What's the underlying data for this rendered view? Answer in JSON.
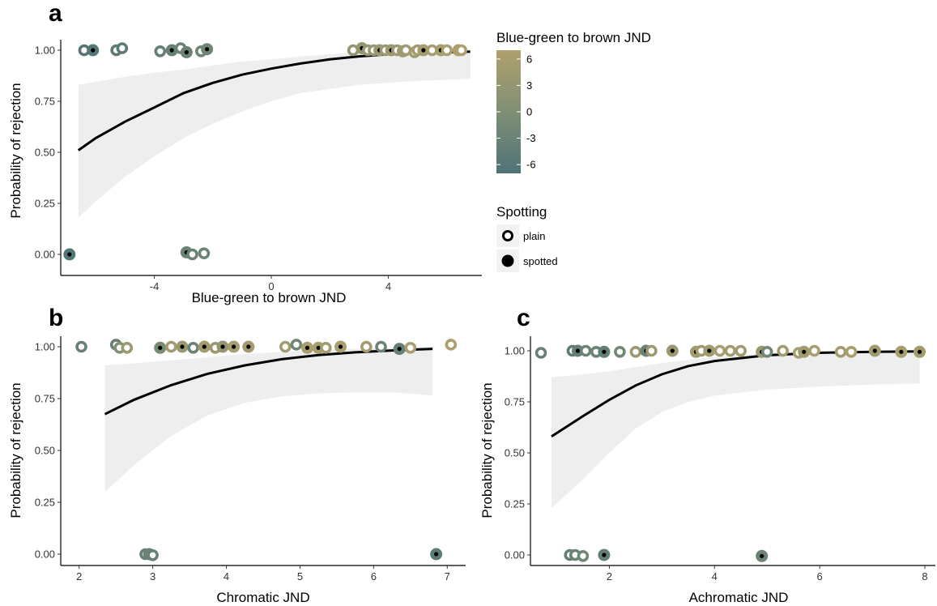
{
  "colors": {
    "low": "#4f7376",
    "mid": "#7f8f75",
    "high": "#b0a06d",
    "ribbon": "#ebebeb",
    "curve": "#000000"
  },
  "legend": {
    "color_title": "Blue-green to brown JND",
    "color_ticks": [
      "6",
      "3",
      "0",
      "-3",
      "-6"
    ],
    "shape_title": "Spotting",
    "plain_label": "plain",
    "spotted_label": "spotted"
  },
  "chart_data": [
    {
      "panel": "a",
      "type": "scatter",
      "xlabel": "Blue-green to brown JND",
      "ylabel": "Probability of rejection",
      "xlim": [
        -7.2,
        7.2
      ],
      "ylim": [
        0,
        1
      ],
      "xticks": [
        -4,
        0,
        4
      ],
      "xtick_labels": [
        "-4",
        "0",
        "4"
      ],
      "yticks": [
        0,
        0.25,
        0.5,
        0.75,
        1
      ],
      "ytick_labels": [
        "0.00",
        "0.25",
        "0.50",
        "0.75",
        "1.00"
      ],
      "grid": false,
      "fit": {
        "x": [
          -6.6,
          -6,
          -5,
          -4,
          -3,
          -2,
          -1,
          0,
          1,
          2,
          3,
          4,
          5,
          6,
          6.8
        ],
        "y": [
          0.51,
          0.57,
          0.65,
          0.72,
          0.79,
          0.84,
          0.88,
          0.91,
          0.935,
          0.955,
          0.97,
          0.98,
          0.986,
          0.99,
          0.993
        ],
        "upper": [
          0.83,
          0.845,
          0.87,
          0.89,
          0.905,
          0.925,
          0.945,
          0.955,
          0.97,
          0.98,
          0.99,
          0.995,
          0.998,
          0.999,
          1.0
        ],
        "lower": [
          0.18,
          0.26,
          0.38,
          0.48,
          0.57,
          0.64,
          0.7,
          0.75,
          0.79,
          0.81,
          0.83,
          0.84,
          0.85,
          0.855,
          0.86
        ]
      },
      "points": [
        {
          "x": -6.4,
          "y": 1.0,
          "spotted": false,
          "c": -6.4
        },
        {
          "x": -6.1,
          "y": 1.0,
          "spotted": true,
          "c": -6.1
        },
        {
          "x": -5.3,
          "y": 1.0,
          "spotted": false,
          "c": -5.3
        },
        {
          "x": -5.1,
          "y": 1.01,
          "spotted": false,
          "c": -5.1
        },
        {
          "x": -3.8,
          "y": 0.995,
          "spotted": false,
          "c": -3.8
        },
        {
          "x": -3.4,
          "y": 1.0,
          "spotted": true,
          "c": -3.4
        },
        {
          "x": -3.1,
          "y": 1.01,
          "spotted": false,
          "c": -3.1
        },
        {
          "x": -2.9,
          "y": 0.99,
          "spotted": true,
          "c": -2.9
        },
        {
          "x": -2.4,
          "y": 0.995,
          "spotted": false,
          "c": -2.4
        },
        {
          "x": -2.2,
          "y": 1.005,
          "spotted": true,
          "c": -2.2
        },
        {
          "x": 2.8,
          "y": 1.0,
          "spotted": false,
          "c": 2.8
        },
        {
          "x": 3.1,
          "y": 1.01,
          "spotted": true,
          "c": 3.1
        },
        {
          "x": 3.3,
          "y": 1.0,
          "spotted": false,
          "c": 3.3
        },
        {
          "x": 3.5,
          "y": 1.0,
          "spotted": false,
          "c": 3.5
        },
        {
          "x": 3.7,
          "y": 1.0,
          "spotted": true,
          "c": 3.7
        },
        {
          "x": 3.9,
          "y": 1.0,
          "spotted": false,
          "c": 3.9
        },
        {
          "x": 4.1,
          "y": 1.0,
          "spotted": true,
          "c": 4.1
        },
        {
          "x": 4.3,
          "y": 1.0,
          "spotted": false,
          "c": 4.3
        },
        {
          "x": 4.5,
          "y": 0.995,
          "spotted": true,
          "c": 4.5
        },
        {
          "x": 4.6,
          "y": 1.0,
          "spotted": false,
          "c": 4.6
        },
        {
          "x": 4.9,
          "y": 0.99,
          "spotted": false,
          "c": 4.9
        },
        {
          "x": 5.0,
          "y": 1.0,
          "spotted": false,
          "c": 5.0
        },
        {
          "x": 5.2,
          "y": 1.0,
          "spotted": true,
          "c": 5.2
        },
        {
          "x": 5.5,
          "y": 1.0,
          "spotted": false,
          "c": 5.5
        },
        {
          "x": 5.8,
          "y": 1.0,
          "spotted": true,
          "c": 5.8
        },
        {
          "x": 6.0,
          "y": 1.0,
          "spotted": false,
          "c": 6.0
        },
        {
          "x": 6.4,
          "y": 1.0,
          "spotted": true,
          "c": 6.4
        },
        {
          "x": 6.5,
          "y": 1.0,
          "spotted": false,
          "c": 6.5
        },
        {
          "x": -6.9,
          "y": 0.0,
          "spotted": true,
          "c": -6.6
        },
        {
          "x": -2.9,
          "y": 0.01,
          "spotted": true,
          "c": -3.0
        },
        {
          "x": -2.7,
          "y": 0.0,
          "spotted": false,
          "c": -3.0
        },
        {
          "x": -2.3,
          "y": 0.005,
          "spotted": false,
          "c": -2.8
        }
      ]
    },
    {
      "panel": "b",
      "type": "scatter",
      "xlabel": "Chromatic JND",
      "ylabel": "Probability of rejection",
      "xlim": [
        1.75,
        7.25
      ],
      "ylim": [
        0,
        1
      ],
      "xticks": [
        2,
        3,
        4,
        5,
        6,
        7
      ],
      "xtick_labels": [
        "2",
        "3",
        "4",
        "5",
        "6",
        "7"
      ],
      "yticks": [
        0,
        0.25,
        0.5,
        0.75,
        1
      ],
      "ytick_labels": [
        "0.00",
        "0.25",
        "0.50",
        "0.75",
        "1.00"
      ],
      "grid": false,
      "fit": {
        "x": [
          2.35,
          2.75,
          3.25,
          3.75,
          4.25,
          4.75,
          5.25,
          5.75,
          6.25,
          6.8
        ],
        "y": [
          0.675,
          0.745,
          0.815,
          0.87,
          0.91,
          0.94,
          0.96,
          0.973,
          0.982,
          0.99
        ],
        "upper": [
          0.91,
          0.92,
          0.935,
          0.95,
          0.965,
          0.975,
          0.985,
          0.99,
          0.995,
          1.0
        ],
        "lower": [
          0.3,
          0.43,
          0.57,
          0.67,
          0.73,
          0.76,
          0.775,
          0.78,
          0.78,
          0.765
        ]
      },
      "points": [
        {
          "x": 2.03,
          "y": 1.0,
          "spotted": false,
          "c": -3.5
        },
        {
          "x": 2.5,
          "y": 1.01,
          "spotted": false,
          "c": -4
        },
        {
          "x": 2.55,
          "y": 0.995,
          "spotted": false,
          "c": 1
        },
        {
          "x": 2.65,
          "y": 0.995,
          "spotted": false,
          "c": 4
        },
        {
          "x": 3.1,
          "y": 0.995,
          "spotted": true,
          "c": -1
        },
        {
          "x": 3.25,
          "y": 1.0,
          "spotted": false,
          "c": 5
        },
        {
          "x": 3.4,
          "y": 1.0,
          "spotted": true,
          "c": 4
        },
        {
          "x": 3.55,
          "y": 0.995,
          "spotted": false,
          "c": -3
        },
        {
          "x": 3.7,
          "y": 1.0,
          "spotted": true,
          "c": 5
        },
        {
          "x": 3.85,
          "y": 0.995,
          "spotted": false,
          "c": 4
        },
        {
          "x": 3.95,
          "y": 1.0,
          "spotted": true,
          "c": 3
        },
        {
          "x": 4.1,
          "y": 1.0,
          "spotted": true,
          "c": 6
        },
        {
          "x": 4.3,
          "y": 1.0,
          "spotted": true,
          "c": 5
        },
        {
          "x": 4.8,
          "y": 1.0,
          "spotted": false,
          "c": 5
        },
        {
          "x": 4.95,
          "y": 1.01,
          "spotted": false,
          "c": -2
        },
        {
          "x": 5.1,
          "y": 0.995,
          "spotted": true,
          "c": 6
        },
        {
          "x": 5.25,
          "y": 0.995,
          "spotted": true,
          "c": 6
        },
        {
          "x": 5.35,
          "y": 0.995,
          "spotted": false,
          "c": 5
        },
        {
          "x": 5.55,
          "y": 1.0,
          "spotted": true,
          "c": 6
        },
        {
          "x": 5.9,
          "y": 1.0,
          "spotted": false,
          "c": 5
        },
        {
          "x": 6.1,
          "y": 1.0,
          "spotted": false,
          "c": -3
        },
        {
          "x": 6.35,
          "y": 0.99,
          "spotted": true,
          "c": -4
        },
        {
          "x": 6.5,
          "y": 0.995,
          "spotted": false,
          "c": 6
        },
        {
          "x": 7.05,
          "y": 1.01,
          "spotted": false,
          "c": 6.5
        },
        {
          "x": 2.9,
          "y": 0.0,
          "spotted": false,
          "c": -4
        },
        {
          "x": 2.95,
          "y": 0.0,
          "spotted": true,
          "c": -3
        },
        {
          "x": 3.0,
          "y": -0.005,
          "spotted": false,
          "c": -3.5
        },
        {
          "x": 6.85,
          "y": 0.0,
          "spotted": true,
          "c": -5
        }
      ]
    },
    {
      "panel": "c",
      "type": "scatter",
      "xlabel": "Achromatic JND",
      "ylabel": "Probability of rejection",
      "xlim": [
        0.5,
        8.2
      ],
      "ylim": [
        0,
        1
      ],
      "xticks": [
        2,
        4,
        6,
        8
      ],
      "xtick_labels": [
        "2",
        "4",
        "6",
        "8"
      ],
      "yticks": [
        0,
        0.25,
        0.5,
        0.75,
        1
      ],
      "ytick_labels": [
        "0.00",
        "0.25",
        "0.50",
        "0.75",
        "1.00"
      ],
      "grid": false,
      "fit": {
        "x": [
          0.9,
          1.5,
          2,
          2.5,
          3,
          3.5,
          4,
          5,
          6,
          7,
          7.9
        ],
        "y": [
          0.58,
          0.68,
          0.76,
          0.83,
          0.885,
          0.925,
          0.95,
          0.978,
          0.99,
          0.995,
          0.997
        ],
        "upper": [
          0.87,
          0.885,
          0.9,
          0.92,
          0.94,
          0.955,
          0.97,
          0.99,
          0.997,
          1.0,
          1.0
        ],
        "lower": [
          0.23,
          0.37,
          0.5,
          0.62,
          0.7,
          0.75,
          0.78,
          0.81,
          0.825,
          0.835,
          0.84
        ]
      },
      "points": [
        {
          "x": 0.7,
          "y": 0.99,
          "spotted": false,
          "c": -3.5
        },
        {
          "x": 1.3,
          "y": 1.0,
          "spotted": false,
          "c": -5
        },
        {
          "x": 1.4,
          "y": 1.0,
          "spotted": true,
          "c": -4
        },
        {
          "x": 1.55,
          "y": 1.0,
          "spotted": false,
          "c": -3
        },
        {
          "x": 1.75,
          "y": 0.995,
          "spotted": false,
          "c": -3
        },
        {
          "x": 1.9,
          "y": 0.995,
          "spotted": true,
          "c": -4
        },
        {
          "x": 2.2,
          "y": 0.995,
          "spotted": false,
          "c": -2
        },
        {
          "x": 2.5,
          "y": 0.995,
          "spotted": false,
          "c": 4
        },
        {
          "x": 2.7,
          "y": 1.0,
          "spotted": true,
          "c": -3
        },
        {
          "x": 2.8,
          "y": 1.0,
          "spotted": false,
          "c": 4
        },
        {
          "x": 3.2,
          "y": 1.0,
          "spotted": true,
          "c": 4
        },
        {
          "x": 3.65,
          "y": 0.995,
          "spotted": true,
          "c": 5
        },
        {
          "x": 3.75,
          "y": 1.0,
          "spotted": false,
          "c": 5
        },
        {
          "x": 3.9,
          "y": 1.0,
          "spotted": true,
          "c": 5
        },
        {
          "x": 4.1,
          "y": 1.0,
          "spotted": false,
          "c": 6
        },
        {
          "x": 4.3,
          "y": 1.0,
          "spotted": false,
          "c": 5
        },
        {
          "x": 4.5,
          "y": 1.0,
          "spotted": false,
          "c": 5
        },
        {
          "x": 4.9,
          "y": 0.995,
          "spotted": true,
          "c": 4
        },
        {
          "x": 5.0,
          "y": 0.995,
          "spotted": false,
          "c": -2
        },
        {
          "x": 5.3,
          "y": 1.0,
          "spotted": false,
          "c": 5
        },
        {
          "x": 5.6,
          "y": 0.99,
          "spotted": false,
          "c": 6
        },
        {
          "x": 5.7,
          "y": 0.995,
          "spotted": true,
          "c": 5
        },
        {
          "x": 5.9,
          "y": 1.0,
          "spotted": false,
          "c": 6
        },
        {
          "x": 6.4,
          "y": 0.995,
          "spotted": false,
          "c": 5
        },
        {
          "x": 6.6,
          "y": 0.995,
          "spotted": false,
          "c": 6
        },
        {
          "x": 7.05,
          "y": 1.0,
          "spotted": true,
          "c": 5
        },
        {
          "x": 7.55,
          "y": 0.995,
          "spotted": true,
          "c": 6
        },
        {
          "x": 7.9,
          "y": 0.995,
          "spotted": true,
          "c": 5
        },
        {
          "x": 1.25,
          "y": 0.0,
          "spotted": false,
          "c": -4
        },
        {
          "x": 1.35,
          "y": 0.0,
          "spotted": false,
          "c": -3
        },
        {
          "x": 1.5,
          "y": -0.005,
          "spotted": false,
          "c": -2
        },
        {
          "x": 1.9,
          "y": 0.0,
          "spotted": true,
          "c": -4
        },
        {
          "x": 4.9,
          "y": -0.005,
          "spotted": true,
          "c": -3
        }
      ]
    }
  ]
}
